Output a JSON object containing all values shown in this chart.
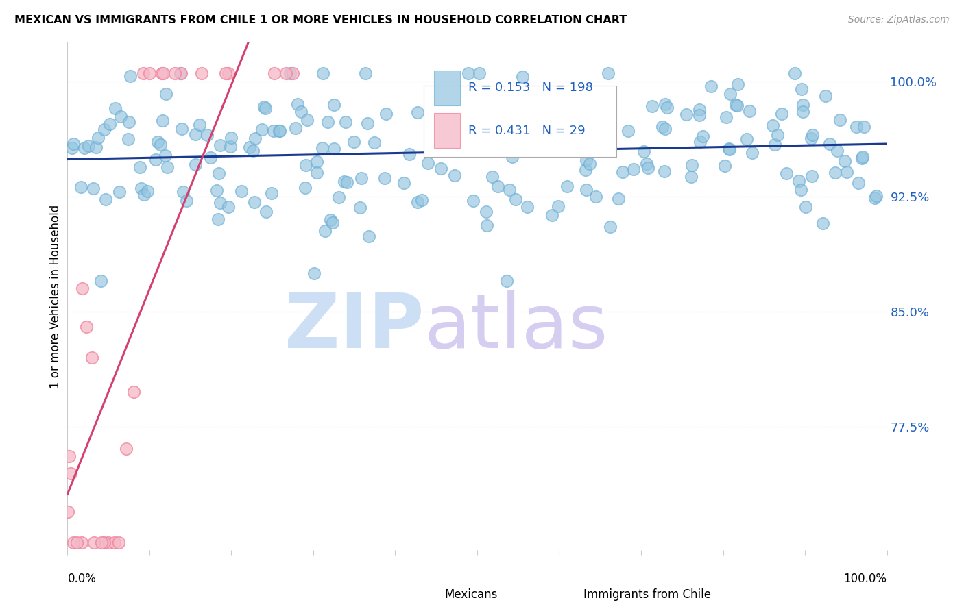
{
  "title": "MEXICAN VS IMMIGRANTS FROM CHILE 1 OR MORE VEHICLES IN HOUSEHOLD CORRELATION CHART",
  "source": "Source: ZipAtlas.com",
  "ylabel": "1 or more Vehicles in Household",
  "ytick_values": [
    1.0,
    0.925,
    0.85,
    0.775
  ],
  "ytick_labels": [
    "100.0%",
    "92.5%",
    "85.0%",
    "77.5%"
  ],
  "xlim": [
    0.0,
    1.0
  ],
  "ylim": [
    0.695,
    1.025
  ],
  "blue_R": 0.153,
  "blue_N": 198,
  "pink_R": 0.431,
  "pink_N": 29,
  "blue_color": "#93c4e0",
  "pink_color": "#f4b8c8",
  "blue_edge_color": "#6aadd5",
  "pink_edge_color": "#f08098",
  "blue_line_color": "#1a3a8f",
  "pink_line_color": "#d44070",
  "watermark_zip_color": "#ccdff5",
  "watermark_atlas_color": "#d5cef0",
  "legend_blue_fill": "#93c4e0",
  "legend_pink_fill": "#f4b8c8"
}
